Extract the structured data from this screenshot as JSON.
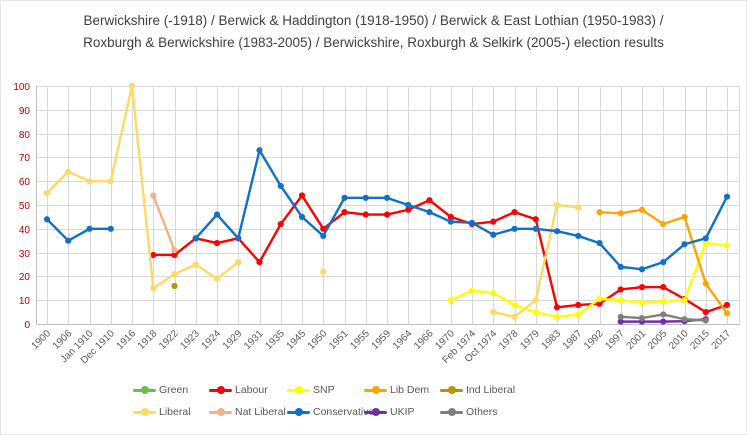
{
  "title": "Berwickshire (-1918) / Berwick & Haddington (1918-1950) / Berwick & East Lothian (1950-1983) / Roxburgh & Berwickshire (1983-2005) / Berwickshire, Roxburgh & Selkirk (2005-) election results",
  "chart_data": {
    "type": "line",
    "title": "Berwickshire (-1918) / Berwick & Haddington (1918-1950) / Berwick & East Lothian (1950-1983) / Roxburgh & Berwickshire (1983-2005) / Berwickshire, Roxburgh & Selkirk (2005-) election results",
    "categories": [
      "1900",
      "1906",
      "Jan 1910",
      "Dec 1910",
      "1916",
      "1918",
      "1922",
      "1923",
      "1924",
      "1929",
      "1931",
      "1935",
      "1945",
      "1950",
      "1951",
      "1955",
      "1959",
      "1964",
      "1966",
      "1970",
      "Feb 1974",
      "Oct 1974",
      "1978",
      "1979",
      "1983",
      "1987",
      "1992",
      "1997",
      "2001",
      "2005",
      "2010",
      "2015",
      "2017"
    ],
    "y_ticks": [
      0,
      10,
      20,
      30,
      40,
      50,
      60,
      70,
      80,
      90,
      100
    ],
    "ylim": [
      0,
      100
    ],
    "grid": true,
    "legend_position": "bottom",
    "series": [
      {
        "name": "Green",
        "color": "#6CBE45",
        "values": [
          null,
          null,
          null,
          null,
          null,
          null,
          null,
          null,
          null,
          null,
          null,
          null,
          null,
          null,
          null,
          null,
          null,
          null,
          null,
          null,
          null,
          null,
          null,
          null,
          null,
          null,
          null,
          null,
          null,
          null,
          null,
          null,
          null
        ]
      },
      {
        "name": "Labour",
        "color": "#FF0000",
        "values": [
          null,
          null,
          null,
          null,
          null,
          29,
          29,
          36,
          34,
          36,
          26,
          42,
          54,
          40,
          47,
          46,
          46,
          48,
          52,
          45,
          42,
          43,
          47,
          44,
          7,
          8,
          8.5,
          14.5,
          15.5,
          15.5,
          10.5,
          5,
          8
        ]
      },
      {
        "name": "SNP",
        "color": "#FFFF00",
        "values": [
          null,
          null,
          null,
          null,
          null,
          null,
          null,
          null,
          null,
          null,
          null,
          null,
          null,
          null,
          null,
          null,
          null,
          null,
          null,
          10,
          14,
          13,
          8,
          5,
          3,
          4,
          10.5,
          10,
          9,
          9.5,
          10,
          34,
          33
        ]
      },
      {
        "name": "Lib Dem",
        "color": "#FFA500",
        "values": [
          null,
          null,
          null,
          null,
          null,
          null,
          null,
          null,
          null,
          null,
          null,
          null,
          null,
          null,
          null,
          null,
          null,
          null,
          null,
          null,
          null,
          null,
          null,
          null,
          null,
          null,
          47,
          46.5,
          48,
          42,
          45,
          17,
          4.5
        ]
      },
      {
        "name": "Ind Liberal",
        "color": "#BF9000",
        "values": [
          null,
          null,
          null,
          null,
          null,
          null,
          16,
          null,
          null,
          null,
          null,
          null,
          null,
          null,
          null,
          null,
          null,
          null,
          null,
          null,
          null,
          null,
          null,
          null,
          null,
          null,
          null,
          null,
          null,
          null,
          null,
          null,
          null
        ]
      },
      {
        "name": "Liberal",
        "color": "#FFD966",
        "values": [
          55,
          64,
          60,
          60,
          100,
          15,
          21,
          25,
          19,
          26,
          null,
          null,
          null,
          22,
          null,
          null,
          null,
          null,
          null,
          null,
          null,
          5,
          3,
          10,
          50,
          49,
          null,
          null,
          null,
          null,
          null,
          null,
          null
        ]
      },
      {
        "name": "Nat Liberal",
        "color": "#F4B183",
        "values": [
          null,
          null,
          null,
          null,
          null,
          54,
          31,
          null,
          null,
          null,
          null,
          null,
          null,
          null,
          null,
          null,
          null,
          null,
          null,
          null,
          null,
          null,
          null,
          null,
          null,
          null,
          null,
          null,
          null,
          null,
          null,
          null,
          null
        ]
      },
      {
        "name": "Conservative",
        "color": "#1170C8",
        "values": [
          44,
          35,
          40,
          40,
          null,
          null,
          null,
          36,
          46,
          36,
          73,
          58,
          45,
          37,
          53,
          53,
          53,
          50,
          47,
          43,
          42.5,
          37.5,
          40,
          40,
          39,
          37,
          34,
          24,
          23,
          26,
          33.5,
          36,
          53.5
        ]
      },
      {
        "name": "UKIP",
        "color": "#7030A0",
        "values": [
          null,
          null,
          null,
          null,
          null,
          null,
          null,
          null,
          null,
          null,
          null,
          null,
          null,
          null,
          null,
          null,
          null,
          null,
          null,
          null,
          null,
          null,
          null,
          null,
          null,
          null,
          null,
          1,
          1,
          1,
          1.2,
          2,
          null
        ]
      },
      {
        "name": "Others",
        "color": "#808080",
        "values": [
          null,
          null,
          null,
          null,
          null,
          null,
          null,
          null,
          null,
          null,
          null,
          null,
          null,
          null,
          null,
          null,
          null,
          null,
          null,
          null,
          null,
          null,
          null,
          null,
          null,
          null,
          null,
          3,
          2.5,
          4,
          2,
          1.5,
          null
        ]
      }
    ],
    "legend_rows": [
      [
        "Green",
        "Labour",
        "SNP",
        "Lib Dem",
        "Ind Liberal"
      ],
      [
        "Liberal",
        "Nat Liberal",
        "Conservative",
        "UKIP",
        "Others"
      ]
    ],
    "axis_style": {
      "y_tick_color": "#C00000",
      "x_tick_color": "#595959",
      "grid_color": "#D9D9D9",
      "axis_color": "#BFBFBF"
    }
  }
}
